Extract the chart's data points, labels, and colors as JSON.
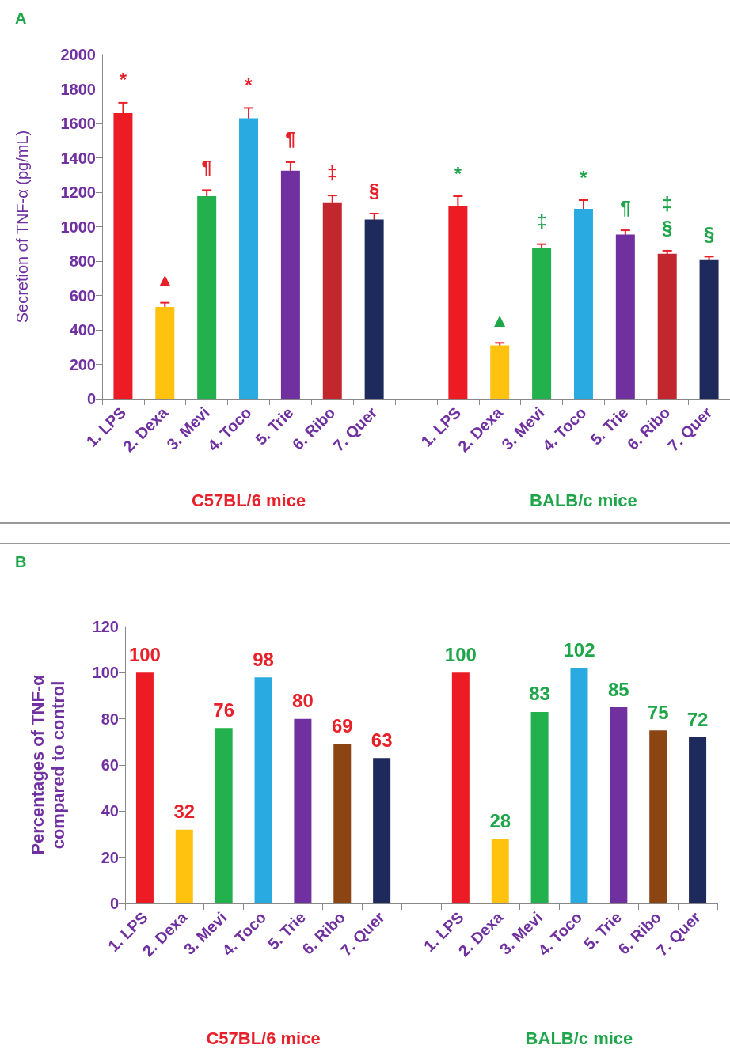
{
  "chart_data": [
    {
      "type": "bar",
      "title": "A",
      "ylabel": "Secretion of TNF-α (pg/mL)",
      "annotations": [
        "C57BL/6 mice",
        "BALB/c mice"
      ],
      "categories": [
        "1. LPS",
        "2. Dexa",
        "3. Mevi",
        "4. Toco",
        "5. Trie",
        "6. Ribo",
        "7. Quer",
        null,
        "1. LPS",
        "2. Dexa",
        "3. Mevi",
        "4. Toco",
        "5. Trie",
        "6. Ribo",
        "7. Quer"
      ],
      "series": [
        {
          "colors": [
            "#ed1c24",
            "#ffc20e",
            "#22b14c",
            "#29abe2",
            "#7030a0",
            "#c1272d",
            "#1f2a5c",
            null,
            null,
            null,
            null,
            null,
            null,
            null,
            null
          ],
          "values": [
            1660,
            533,
            1177,
            1630,
            1325,
            1141,
            1041,
            null,
            null,
            null,
            null,
            null,
            null,
            null,
            null
          ],
          "errors": [
            60,
            25,
            35,
            60,
            50,
            40,
            35,
            null,
            null,
            null,
            null,
            null,
            null,
            null,
            null
          ],
          "value_labels": [
            "*",
            "▲",
            "¶",
            "*",
            "¶",
            "‡",
            "§",
            null,
            null,
            null,
            null,
            null,
            null,
            null,
            null
          ]
        },
        {
          "colors": [
            null,
            null,
            null,
            null,
            null,
            null,
            null,
            null,
            "#ed1c24",
            "#ffc20e",
            "#22b14c",
            "#29abe2",
            "#7030a0",
            "#c1272d",
            "#1f2a5c"
          ],
          "values": [
            null,
            null,
            null,
            null,
            null,
            null,
            null,
            null,
            1122,
            310,
            878,
            1104,
            954,
            843,
            806
          ],
          "errors": [
            null,
            null,
            null,
            null,
            null,
            null,
            null,
            null,
            55,
            15,
            20,
            50,
            25,
            17,
            20
          ],
          "value_labels": [
            null,
            null,
            null,
            null,
            null,
            null,
            null,
            null,
            "*",
            "▲",
            "‡",
            "*",
            "¶",
            "‡\n§",
            "§"
          ]
        }
      ],
      "ylim": [
        0,
        2000
      ],
      "yticks": [
        0,
        200,
        400,
        600,
        800,
        1000,
        1200,
        1400,
        1600,
        1800,
        2000
      ],
      "grid": false
    },
    {
      "type": "bar",
      "title": "B",
      "ylabel": "Percentages of TNF-α\ncompared to control",
      "data_labels": true,
      "annotations": [
        "C57BL/6 mice",
        "BALB/c mice"
      ],
      "categories": [
        "1. LPS",
        "2. Dexa",
        "3. Mevi",
        "4. Toco",
        "5. Trie",
        "6. Ribo",
        "7. Quer",
        null,
        "1. LPS",
        "2. Dexa",
        "3. Mevi",
        "4. Toco",
        "5. Trie",
        "6. Ribo",
        "7. Quer"
      ],
      "series": [
        {
          "colors": [
            "#ed1c24",
            "#ffc20e",
            "#22b14c",
            "#29abe2",
            "#7030a0",
            "#8b4513",
            "#1f2a5c",
            null,
            null,
            null,
            null,
            null,
            null,
            null,
            null
          ],
          "values": [
            100,
            32,
            76,
            98,
            80,
            69,
            63,
            null,
            null,
            null,
            null,
            null,
            null,
            null,
            null
          ]
        },
        {
          "colors": [
            null,
            null,
            null,
            null,
            null,
            null,
            null,
            null,
            "#ed1c24",
            "#ffc20e",
            "#22b14c",
            "#29abe2",
            "#7030a0",
            "#8b4513",
            "#1f2a5c"
          ],
          "values": [
            null,
            null,
            null,
            null,
            null,
            null,
            null,
            null,
            100,
            28,
            83,
            102,
            85,
            75,
            72
          ]
        }
      ],
      "ylim": [
        0,
        120
      ],
      "yticks": [
        0,
        20,
        40,
        60,
        80,
        100,
        120
      ],
      "grid": false
    }
  ]
}
